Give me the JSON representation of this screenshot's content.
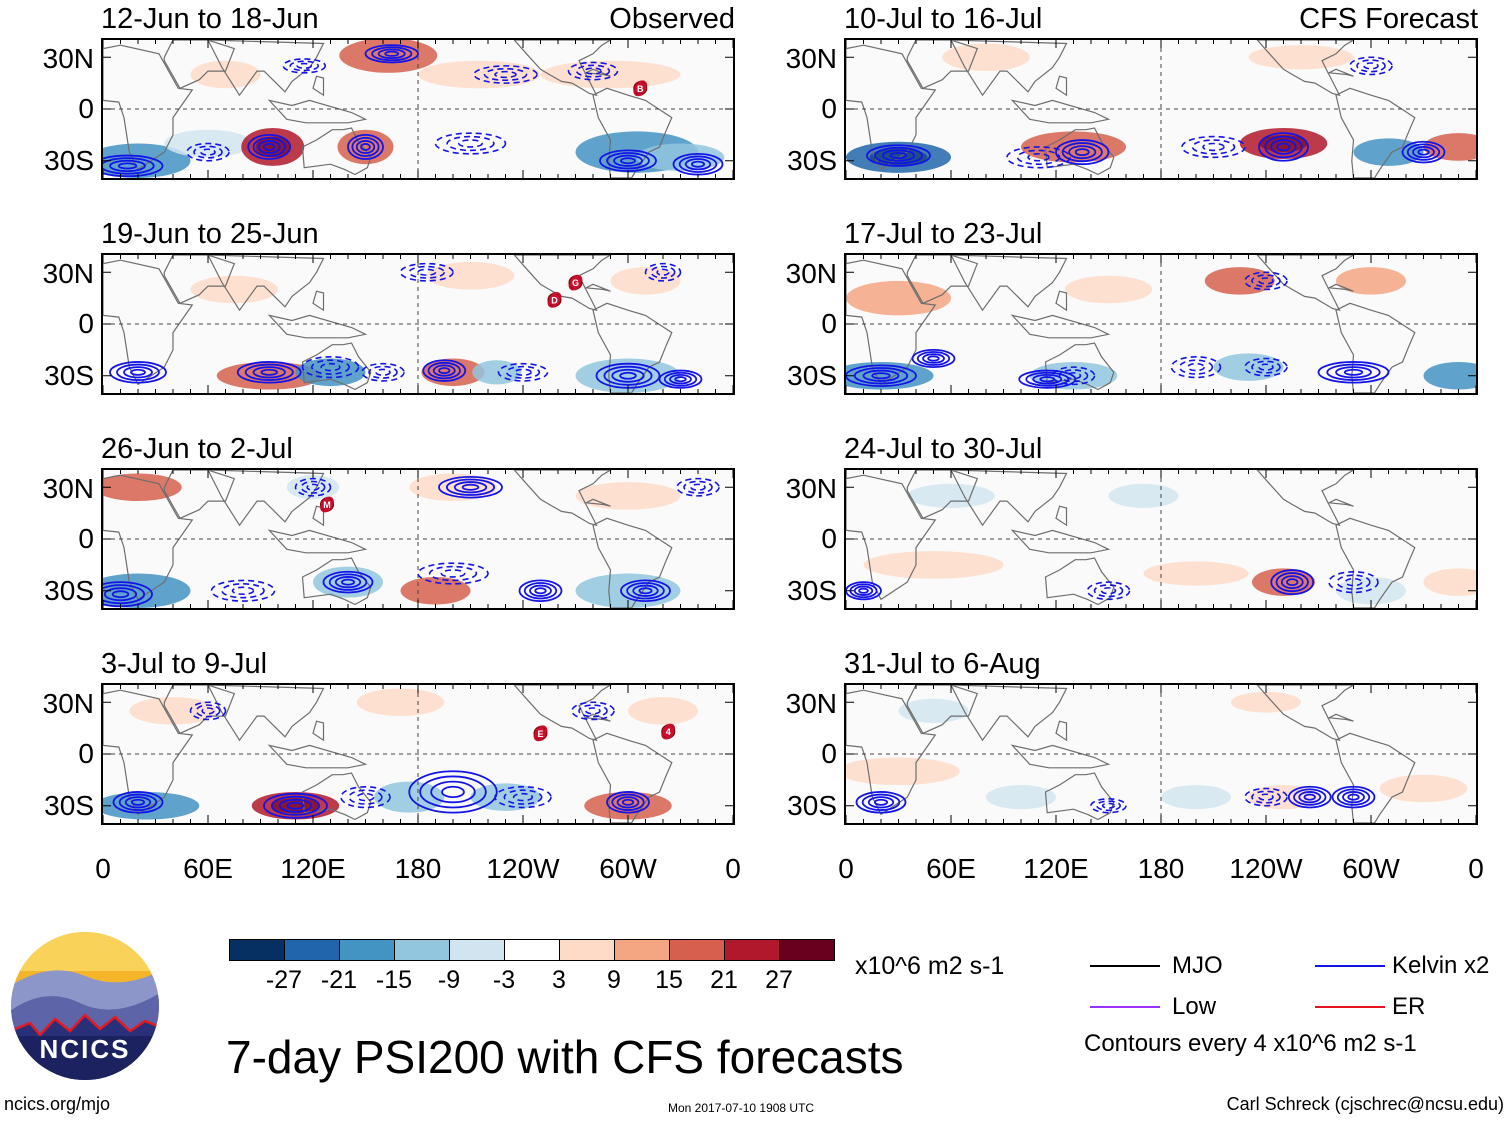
{
  "observed_label": "Observed",
  "forecast_label": "CFS Forecast",
  "lat_labels": [
    "30N",
    "0",
    "30S"
  ],
  "lon_labels": [
    "0",
    "60E",
    "120E",
    "180",
    "120W",
    "60W",
    "0"
  ],
  "left_panels": [
    {
      "date": "12-Jun to 18-Jun",
      "storms": [
        {
          "letter": "B",
          "lon": 307,
          "lat": 12
        }
      ]
    },
    {
      "date": "19-Jun to 25-Jun",
      "storms": [
        {
          "letter": "D",
          "lon": 258,
          "lat": 14
        },
        {
          "letter": "G",
          "lon": 270,
          "lat": 24
        }
      ]
    },
    {
      "date": "26-Jun to 2-Jul",
      "storms": [
        {
          "letter": "M",
          "lon": 128,
          "lat": 20
        }
      ]
    },
    {
      "date": "3-Jul to 9-Jul",
      "storms": [
        {
          "letter": "E",
          "lon": 250,
          "lat": 12
        },
        {
          "letter": "4",
          "lon": 323,
          "lat": 13
        }
      ]
    }
  ],
  "right_panels": [
    {
      "date": "10-Jul to 16-Jul"
    },
    {
      "date": "17-Jul to 23-Jul"
    },
    {
      "date": "24-Jul to 30-Jul"
    },
    {
      "date": "31-Jul to 6-Aug"
    }
  ],
  "colorbar": {
    "colors": [
      "#053061",
      "#2166ac",
      "#4393c3",
      "#92c5de",
      "#d1e5f0",
      "#ffffff",
      "#fddbc7",
      "#f4a582",
      "#d6604d",
      "#b2182b",
      "#67001f"
    ],
    "labels": [
      "-27",
      "-21",
      "-15",
      "-9",
      "-3",
      "3",
      "9",
      "15",
      "21",
      "27"
    ],
    "units": "x10^6 m2 s-1"
  },
  "legend": {
    "items": [
      {
        "label": "MJO",
        "color": "#000000"
      },
      {
        "label": "Kelvin x2",
        "color": "#1414e6"
      },
      {
        "label": "Low",
        "color": "#9b30ff"
      },
      {
        "label": "ER",
        "color": "#e6141e"
      }
    ],
    "contours_note": "Contours every 4 x10^6 m2 s-1"
  },
  "title": "7-day PSI200 with CFS forecasts",
  "logo_text": "NCICS",
  "footer": {
    "url": "ncics.org/mjo",
    "timestamp": "Mon 2017-07-10 1908 UTC",
    "author": "Carl Schreck (cjschrec@ncsu.edu)"
  }
}
